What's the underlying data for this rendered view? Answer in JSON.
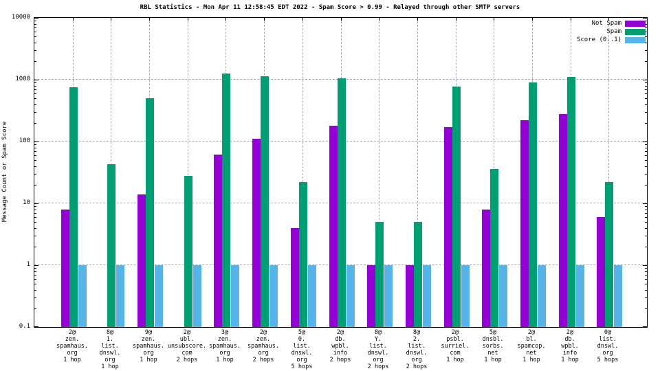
{
  "chart_data": {
    "type": "bar",
    "title": "RBL Statistics - Mon Apr 11 12:58:45 EDT 2022 - Spam Score > 0.99 - Relayed through other SMTP servers",
    "ylabel": "Message Count or Spam Score",
    "xlabel": "",
    "y_scale": "log",
    "ylim": [
      0.1,
      10000
    ],
    "y_ticks": [
      "0.1",
      "1",
      "10",
      "100",
      "1000",
      "10000"
    ],
    "grid": true,
    "legend_position": "top-right",
    "colors": {
      "not_spam": "#9400d3",
      "spam": "#009e73",
      "score": "#56b4e9",
      "grid": "#a8a8a8",
      "border": "#000000",
      "background": "#ffffff"
    },
    "legend": [
      {
        "name": "Not Spam",
        "color": "#9400d3"
      },
      {
        "name": "Spam",
        "color": "#009e73"
      },
      {
        "name": "Score (0..1)",
        "color": "#56b4e9"
      }
    ],
    "categories": [
      [
        "2@",
        "zen.",
        "spamhaus.",
        "org",
        "1 hop"
      ],
      [
        "8@",
        "1.",
        "list.",
        "dnswl.",
        "org",
        "1 hop"
      ],
      [
        "9@",
        "zen.",
        "spamhaus.",
        "org",
        "1 hop"
      ],
      [
        "2@",
        "ubl.",
        "unsubscore.",
        "com",
        "2 hops"
      ],
      [
        "3@",
        "zen.",
        "spamhaus.",
        "org",
        "1 hop"
      ],
      [
        "2@",
        "zen.",
        "spamhaus.",
        "org",
        "2 hops"
      ],
      [
        "5@",
        "0.",
        "list.",
        "dnswl.",
        "org",
        "5 hops"
      ],
      [
        "2@",
        "db.",
        "wpbl.",
        "info",
        "2 hops"
      ],
      [
        "8@",
        "Y.",
        "list.",
        "dnswl.",
        "org",
        "2 hops"
      ],
      [
        "8@",
        "2.",
        "list.",
        "dnswl.",
        "org",
        "2 hops"
      ],
      [
        "2@",
        "psbl.",
        "surriel.",
        "com",
        "1 hop"
      ],
      [
        "5@",
        "dnsbl.",
        "sorbs.",
        "net",
        "1 hop"
      ],
      [
        "2@",
        "bl.",
        "spamcop.",
        "net",
        "1 hop"
      ],
      [
        "2@",
        "db.",
        "wpbl.",
        "info",
        "1 hop"
      ],
      [
        "0@",
        "list.",
        "dnswl.",
        "org",
        "5 hops"
      ]
    ],
    "series": [
      {
        "name": "Not Spam",
        "values": [
          8,
          0,
          14,
          0,
          62,
          110,
          4,
          180,
          1,
          1,
          170,
          8,
          220,
          275,
          6
        ]
      },
      {
        "name": "Spam",
        "values": [
          750,
          43,
          500,
          28,
          1250,
          1150,
          22,
          1050,
          5,
          5,
          780,
          36,
          900,
          1100,
          22
        ]
      },
      {
        "name": "Score (0..1)",
        "values": [
          1,
          1,
          1,
          1,
          1,
          1,
          1,
          1,
          1,
          1,
          1,
          1,
          1,
          1,
          1
        ]
      }
    ]
  }
}
